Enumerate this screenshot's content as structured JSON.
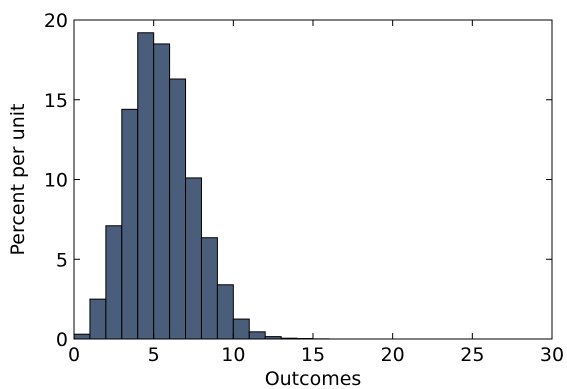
{
  "chart_data": {
    "type": "bar",
    "histogram": true,
    "bin_width": 1,
    "bin_starts": [
      0,
      1,
      2,
      3,
      4,
      5,
      6,
      7,
      8,
      9,
      10,
      11,
      12,
      13,
      14,
      15
    ],
    "values": [
      0.3,
      2.5,
      7.1,
      14.4,
      19.2,
      18.5,
      16.3,
      10.1,
      6.35,
      3.4,
      1.25,
      0.45,
      0.15,
      0.05,
      0.03,
      0.01
    ],
    "xlabel": "Outcomes",
    "ylabel": "Percent per unit",
    "xlim": [
      0,
      30
    ],
    "ylim": [
      0,
      20
    ],
    "x_ticks": [
      "0",
      "5",
      "10",
      "15",
      "20",
      "25",
      "30"
    ],
    "y_ticks": [
      "0",
      "5",
      "10",
      "15",
      "20"
    ],
    "bar_color": "#4a5d7a",
    "edge_color": "#000000",
    "grid": false
  }
}
